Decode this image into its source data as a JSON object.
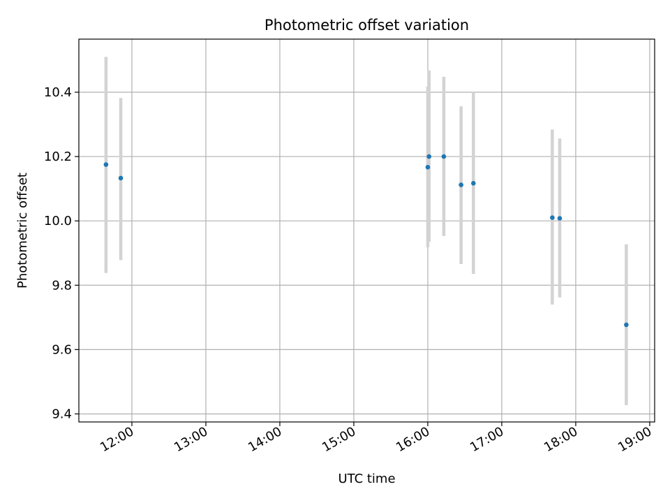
{
  "chart_data": {
    "type": "scatter",
    "title": "Photometric offset variation",
    "xlabel": "UTC time",
    "ylabel": "Photometric offset",
    "x_axis_kind": "time",
    "xlim": [
      "11:17",
      "19:04"
    ],
    "ylim": [
      9.375,
      10.565
    ],
    "grid": true,
    "x_ticks": [
      "12:00",
      "13:00",
      "14:00",
      "15:00",
      "16:00",
      "17:00",
      "18:00",
      "19:00"
    ],
    "y_ticks": [
      9.4,
      9.6,
      9.8,
      10.0,
      10.2,
      10.4
    ],
    "y_tick_labels": [
      "9.4",
      "9.6",
      "9.8",
      "10.0",
      "10.2",
      "10.4"
    ],
    "series": [
      {
        "points": [
          {
            "x": "11:39",
            "y": 10.175,
            "yerr_low": 9.838,
            "yerr_high": 10.51
          },
          {
            "x": "11:51",
            "y": 10.133,
            "yerr_low": 9.878,
            "yerr_high": 10.382
          },
          {
            "x": "16:00",
            "y": 10.167,
            "yerr_low": 9.918,
            "yerr_high": 10.418
          },
          {
            "x": "16:01",
            "y": 10.2,
            "yerr_low": 9.935,
            "yerr_high": 10.468
          },
          {
            "x": "16:13",
            "y": 10.2,
            "yerr_low": 9.953,
            "yerr_high": 10.448
          },
          {
            "x": "16:27",
            "y": 10.112,
            "yerr_low": 9.866,
            "yerr_high": 10.356
          },
          {
            "x": "16:37",
            "y": 10.117,
            "yerr_low": 9.835,
            "yerr_high": 10.4
          },
          {
            "x": "17:41",
            "y": 10.01,
            "yerr_low": 9.74,
            "yerr_high": 10.284
          },
          {
            "x": "17:47",
            "y": 10.008,
            "yerr_low": 9.762,
            "yerr_high": 10.256
          },
          {
            "x": "18:41",
            "y": 9.677,
            "yerr_low": 9.427,
            "yerr_high": 9.927
          }
        ]
      }
    ],
    "colors": {
      "marker": "#1f77b4",
      "errorbar": "#d3d3d3",
      "grid": "#b0b0b0",
      "axes": "#000000"
    }
  }
}
